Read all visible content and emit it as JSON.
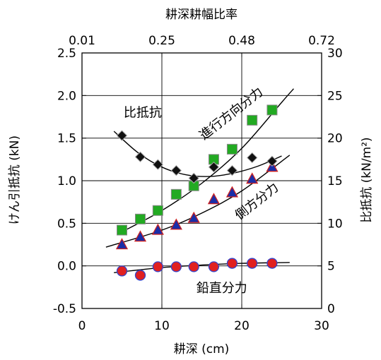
{
  "chart_data": {
    "type": "scatter",
    "top_axis": {
      "label": "耕深耕幅比率",
      "ticks": [
        "0.01",
        "0.25",
        "0.48",
        "0.72"
      ]
    },
    "x_axis": {
      "label": "耕深 (cm)",
      "ticks": [
        "0",
        "10",
        "20",
        "30"
      ],
      "range": [
        0,
        30
      ]
    },
    "y_left": {
      "label": "けん引抵抗 (kN)",
      "ticks": [
        "-0.5",
        "0.0",
        "0.5",
        "1.0",
        "1.5",
        "2.0",
        "2.5"
      ],
      "range": [
        -0.5,
        2.5
      ]
    },
    "y_right": {
      "label": "比抵抗 (kN/m²)",
      "ticks": [
        "0",
        "5",
        "10",
        "15",
        "20",
        "25",
        "30"
      ],
      "range": [
        0,
        30
      ]
    },
    "grid": true,
    "series": [
      {
        "name": "進行方向分力",
        "axis": "left",
        "marker": "square",
        "color": "#22aa22",
        "edge": "#888888",
        "x": [
          5.0,
          7.3,
          9.5,
          11.8,
          14.0,
          16.5,
          18.8,
          21.3,
          23.8
        ],
        "y": [
          0.42,
          0.55,
          0.65,
          0.84,
          0.94,
          1.25,
          1.37,
          1.71,
          1.83
        ],
        "fit": [
          [
            5,
            0.4
          ],
          [
            10,
            0.65
          ],
          [
            15,
            0.97
          ],
          [
            20,
            1.38
          ],
          [
            25,
            1.92
          ],
          [
            26.5,
            2.08
          ]
        ]
      },
      {
        "name": "側方分力",
        "axis": "left",
        "marker": "triangle",
        "color": "#1a2ea8",
        "edge": "#cc2222",
        "x": [
          5.0,
          7.3,
          9.5,
          11.8,
          14.0,
          16.5,
          18.8,
          21.3,
          23.8
        ],
        "y": [
          0.25,
          0.34,
          0.42,
          0.48,
          0.56,
          0.78,
          0.86,
          1.02,
          1.16
        ],
        "fit": [
          [
            3,
            0.22
          ],
          [
            10,
            0.42
          ],
          [
            15,
            0.62
          ],
          [
            20,
            0.88
          ],
          [
            26,
            1.3
          ]
        ]
      },
      {
        "name": "鉛直分力",
        "axis": "left",
        "marker": "circle",
        "color": "#e02020",
        "edge": "#3344cc",
        "x": [
          5.0,
          7.3,
          9.5,
          11.8,
          14.0,
          16.5,
          18.8,
          21.3,
          23.8
        ],
        "y": [
          -0.06,
          -0.11,
          -0.01,
          -0.01,
          -0.01,
          -0.01,
          0.03,
          0.03,
          0.03
        ],
        "fit": [
          [
            4,
            -0.08
          ],
          [
            10,
            -0.02
          ],
          [
            15,
            0.01
          ],
          [
            20,
            0.03
          ],
          [
            26,
            0.04
          ]
        ]
      },
      {
        "name": "比抵抗",
        "axis": "right",
        "marker": "diamond",
        "color": "#111111",
        "edge": "#aaaaaa",
        "x": [
          5.0,
          7.3,
          9.5,
          11.8,
          14.0,
          16.5,
          18.8,
          21.3,
          23.8
        ],
        "y": [
          20.3,
          17.8,
          16.9,
          16.2,
          15.3,
          16.6,
          16.2,
          17.7,
          17.3
        ],
        "fit": [
          [
            4,
            20.8
          ],
          [
            7,
            18.3
          ],
          [
            10,
            16.6
          ],
          [
            13,
            15.7
          ],
          [
            16,
            15.5
          ],
          [
            19,
            15.9
          ],
          [
            22,
            16.7
          ],
          [
            25,
            17.9
          ]
        ]
      }
    ],
    "annotations": [
      {
        "text": "比抵抗",
        "x": 7.6,
        "y_left": 1.75,
        "rotate": 0
      },
      {
        "text": "進行方向分力",
        "x": 19.0,
        "y_left": 1.75,
        "rotate": -38
      },
      {
        "text": "側方分力",
        "x": 22.2,
        "y_left": 0.72,
        "rotate": -38
      },
      {
        "text": "鉛直分力",
        "x": 17.5,
        "y_left": -0.31,
        "rotate": 0
      }
    ]
  }
}
